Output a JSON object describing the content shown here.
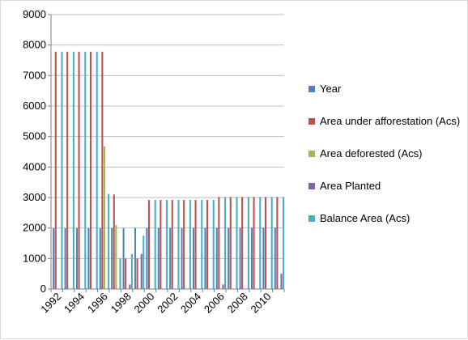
{
  "chart_data": {
    "type": "bar",
    "ylim": [
      0,
      9000
    ],
    "y_ticks": [
      "0",
      "1000",
      "2000",
      "3000",
      "4000",
      "5000",
      "6000",
      "7000",
      "8000",
      "9000"
    ],
    "x_tick_labels": [
      "1992",
      "1994",
      "1996",
      "1998",
      "2000",
      "2002",
      "2004",
      "2006",
      "2008",
      "2010"
    ],
    "categories": [
      "1992",
      "1993",
      "1994",
      "1995",
      "1996",
      "1997",
      "1998",
      "1999",
      "2000",
      "2001",
      "2002",
      "2003",
      "2004",
      "2005",
      "2006",
      "2007",
      "2008",
      "2009",
      "2010",
      "2011"
    ],
    "grid": true,
    "legend_position": "right",
    "series": [
      {
        "name": "Year",
        "color": "#4f81bd",
        "values": [
          1992,
          1993,
          1994,
          1995,
          1996,
          1997,
          1998,
          1999,
          2000,
          2001,
          2002,
          2003,
          2004,
          2005,
          2006,
          2007,
          2008,
          2009,
          2010,
          2011
        ]
      },
      {
        "name": "Area under afforestation (Acs)",
        "color": "#c0504d",
        "values": [
          7780,
          7780,
          7780,
          7780,
          7780,
          3100,
          1000,
          1000,
          2920,
          2920,
          2920,
          2920,
          2920,
          2920,
          3020,
          3020,
          3020,
          3020,
          3020,
          3020
        ]
      },
      {
        "name": "Area deforested (Acs)",
        "color": "#9bbb59",
        "values": [
          0,
          0,
          0,
          0,
          4680,
          2100,
          0,
          0,
          0,
          0,
          0,
          0,
          0,
          0,
          0,
          0,
          0,
          0,
          0,
          0
        ]
      },
      {
        "name": "Area Planted",
        "color": "#8064a2",
        "values": [
          0,
          0,
          0,
          0,
          0,
          0,
          150,
          1150,
          0,
          0,
          0,
          0,
          0,
          0,
          150,
          0,
          0,
          0,
          0,
          500
        ]
      },
      {
        "name": "Balance Area (Acs)",
        "color": "#4bacc6",
        "values": [
          7780,
          7780,
          7780,
          7780,
          3120,
          1000,
          1150,
          1750,
          2920,
          2920,
          2920,
          2920,
          2920,
          2920,
          3020,
          3020,
          3020,
          3020,
          3020,
          3020
        ]
      }
    ]
  }
}
